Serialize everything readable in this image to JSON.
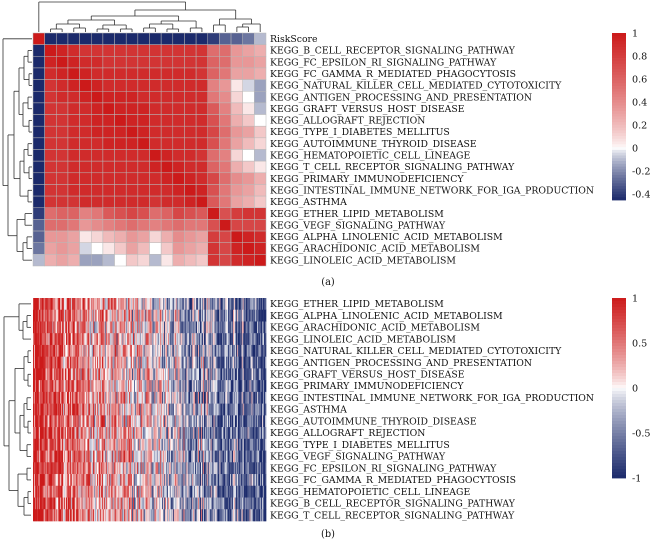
{
  "chart_data": [
    {
      "type": "heatmap",
      "panel_label": "(a)",
      "rows": [
        "RiskScore",
        "KEGG_B_CELL_RECEPTOR_SIGNALING_PATHWAY",
        "KEGG_FC_EPSILON_RI_SIGNALING_PATHWAY",
        "KEGG_FC_GAMMA_R_MEDIATED_PHAGOCYTOSIS",
        "KEGG_NATURAL_KILLER_CELL_MEDIATED_CYTOTOXICITY",
        "KEGG_ANTIGEN_PROCESSING_AND_PRESENTATION",
        "KEGG_GRAFT_VERSUS_HOST_DISEASE",
        "KEGG_ALLOGRAFT_REJECTION",
        "KEGG_TYPE_I_DIABETES_MELLITUS",
        "KEGG_AUTOIMMUNE_THYROID_DISEASE",
        "KEGG_HEMATOPOIETIC_CELL_LINEAGE",
        "KEGG_T_CELL_RECEPTOR_SIGNALING_PATHWAY",
        "KEGG_PRIMARY_IMMUNODEFICIENCY",
        "KEGG_INTESTINAL_IMMUNE_NETWORK_FOR_IGA_PRODUCTION",
        "KEGG_ASTHMA",
        "KEGG_ETHER_LIPID_METABOLISM",
        "KEGG_VEGF_SIGNALING_PATHWAY",
        "KEGG_ALPHA_LINOLENIC_ACID_METABOLISM",
        "KEGG_ARACHIDONIC_ACID_METABOLISM",
        "KEGG_LINOLEIC_ACID_METABOLISM"
      ],
      "values": [
        [
          1,
          -0.45,
          -0.45,
          -0.45,
          -0.45,
          -0.45,
          -0.45,
          -0.45,
          -0.45,
          -0.45,
          -0.45,
          -0.45,
          -0.45,
          -0.45,
          -0.45,
          -0.4,
          -0.3,
          -0.3,
          -0.25,
          -0.1
        ],
        [
          -0.45,
          1,
          0.95,
          0.9,
          0.85,
          0.85,
          0.85,
          0.85,
          0.85,
          0.85,
          0.85,
          0.85,
          0.85,
          0.85,
          0.85,
          0.55,
          0.55,
          0.35,
          0.3,
          0.25
        ],
        [
          -0.45,
          0.95,
          1,
          0.95,
          0.9,
          0.9,
          0.85,
          0.85,
          0.85,
          0.85,
          0.85,
          0.85,
          0.85,
          0.85,
          0.85,
          0.6,
          0.55,
          0.35,
          0.35,
          0.3
        ],
        [
          -0.45,
          0.9,
          0.95,
          1,
          0.95,
          0.9,
          0.9,
          0.9,
          0.9,
          0.9,
          0.9,
          0.9,
          0.9,
          0.9,
          0.85,
          0.6,
          0.5,
          0.3,
          0.3,
          0.25
        ],
        [
          -0.45,
          0.85,
          0.9,
          0.95,
          1,
          0.95,
          0.9,
          0.9,
          0.9,
          0.9,
          0.9,
          0.9,
          0.9,
          0.9,
          0.9,
          0.45,
          0.35,
          0.05,
          -0.05,
          -0.15
        ],
        [
          -0.45,
          0.85,
          0.9,
          0.9,
          0.95,
          1,
          0.95,
          0.95,
          0.95,
          0.9,
          0.9,
          0.9,
          0.9,
          0.9,
          0.9,
          0.5,
          0.4,
          0.1,
          0,
          -0.15
        ],
        [
          -0.45,
          0.85,
          0.85,
          0.9,
          0.9,
          0.95,
          1,
          0.95,
          0.95,
          0.95,
          0.9,
          0.9,
          0.9,
          0.9,
          0.9,
          0.65,
          0.45,
          0.2,
          0.05,
          -0.1
        ],
        [
          -0.45,
          0.85,
          0.85,
          0.9,
          0.9,
          0.95,
          0.95,
          1,
          0.95,
          0.95,
          0.9,
          0.9,
          0.9,
          0.9,
          0.9,
          0.7,
          0.5,
          0.25,
          0.15,
          0
        ],
        [
          -0.45,
          0.85,
          0.85,
          0.9,
          0.9,
          0.95,
          0.95,
          0.95,
          1,
          0.95,
          0.9,
          0.9,
          0.9,
          0.9,
          0.9,
          0.75,
          0.55,
          0.35,
          0.3,
          0.15
        ],
        [
          -0.45,
          0.85,
          0.85,
          0.9,
          0.9,
          0.9,
          0.95,
          0.95,
          0.95,
          1,
          0.9,
          0.9,
          0.9,
          0.9,
          0.9,
          0.7,
          0.5,
          0.3,
          0.2,
          0.1
        ],
        [
          -0.45,
          0.85,
          0.85,
          0.9,
          0.9,
          0.9,
          0.9,
          0.9,
          0.9,
          0.9,
          1,
          0.95,
          0.9,
          0.9,
          0.85,
          0.55,
          0.45,
          0.1,
          0,
          -0.1
        ],
        [
          -0.45,
          0.85,
          0.85,
          0.9,
          0.9,
          0.9,
          0.9,
          0.9,
          0.9,
          0.9,
          0.95,
          1,
          0.95,
          0.9,
          0.9,
          0.6,
          0.5,
          0.25,
          0.15,
          0.05
        ],
        [
          -0.45,
          0.85,
          0.85,
          0.9,
          0.9,
          0.9,
          0.9,
          0.9,
          0.9,
          0.9,
          0.9,
          0.95,
          1,
          0.95,
          0.9,
          0.75,
          0.55,
          0.4,
          0.35,
          0.25
        ],
        [
          -0.45,
          0.85,
          0.85,
          0.9,
          0.9,
          0.9,
          0.9,
          0.9,
          0.9,
          0.9,
          0.9,
          0.9,
          0.95,
          1,
          0.95,
          0.7,
          0.5,
          0.35,
          0.3,
          0.2
        ],
        [
          -0.45,
          0.85,
          0.85,
          0.85,
          0.9,
          0.9,
          0.9,
          0.9,
          0.9,
          0.9,
          0.85,
          0.9,
          0.9,
          0.95,
          1,
          0.65,
          0.5,
          0.3,
          0.25,
          0.15
        ],
        [
          -0.4,
          0.55,
          0.6,
          0.6,
          0.45,
          0.5,
          0.65,
          0.7,
          0.75,
          0.7,
          0.55,
          0.6,
          0.75,
          0.7,
          0.65,
          1,
          0.7,
          0.8,
          0.85,
          0.85
        ],
        [
          -0.3,
          0.55,
          0.55,
          0.5,
          0.35,
          0.4,
          0.45,
          0.5,
          0.55,
          0.5,
          0.45,
          0.5,
          0.55,
          0.5,
          0.5,
          0.7,
          1,
          0.75,
          0.75,
          0.75
        ],
        [
          -0.3,
          0.35,
          0.35,
          0.3,
          0.05,
          0.1,
          0.2,
          0.25,
          0.35,
          0.3,
          0.1,
          0.25,
          0.4,
          0.35,
          0.3,
          0.8,
          0.75,
          1,
          0.95,
          0.9
        ],
        [
          -0.25,
          0.3,
          0.35,
          0.3,
          -0.05,
          0,
          0.05,
          0.15,
          0.3,
          0.2,
          0,
          0.15,
          0.35,
          0.3,
          0.25,
          0.85,
          0.75,
          0.95,
          1,
          0.95
        ],
        [
          -0.1,
          0.25,
          0.3,
          0.25,
          -0.15,
          -0.15,
          -0.1,
          0,
          0.15,
          0.1,
          -0.1,
          0.05,
          0.25,
          0.2,
          0.15,
          0.85,
          0.75,
          0.9,
          0.95,
          1
        ]
      ],
      "colorbar": {
        "ticks": [
          1,
          0.8,
          0.6,
          0.4,
          0.2,
          0,
          -0.2,
          -0.4
        ],
        "range": [
          -0.45,
          1
        ],
        "colors": [
          "#1b2a6b",
          "#ffffff",
          "#cc1a1a"
        ]
      },
      "grid": true,
      "legend": "right",
      "dendrograms": [
        "top",
        "left"
      ]
    },
    {
      "type": "heatmap",
      "panel_label": "(b)",
      "rows": [
        "KEGG_ETHER_LIPID_METABOLISM",
        "KEGG_ALPHA_LINOLENIC_ACID_METABOLISM",
        "KEGG_ARACHIDONIC_ACID_METABOLISM",
        "KEGG_LINOLEIC_ACID_METABOLISM",
        "KEGG_NATURAL_KILLER_CELL_MEDIATED_CYTOTOXICITY",
        "KEGG_ANTIGEN_PROCESSING_AND_PRESENTATION",
        "KEGG_GRAFT_VERSUS_HOST_DISEASE",
        "KEGG_PRIMARY_IMMUNODEFICIENCY",
        "KEGG_INTESTINAL_IMMUNE_NETWORK_FOR_IGA_PRODUCTION",
        "KEGG_ASTHMA",
        "KEGG_AUTOIMMUNE_THYROID_DISEASE",
        "KEGG_ALLOGRAFT_REJECTION",
        "KEGG_TYPE_I_DIABETES_MELLITUS",
        "KEGG_VEGF_SIGNALING_PATHWAY",
        "KEGG_FC_EPSILON_RI_SIGNALING_PATHWAY",
        "KEGG_FC_GAMMA_R_MEDIATED_PHAGOCYTOSIS",
        "KEGG_HEMATOPOIETIC_CELL_LINEAGE",
        "KEGG_B_CELL_RECEPTOR_SIGNALING_PATHWAY",
        "KEGG_T_CELL_RECEPTOR_SIGNALING_PATHWAY"
      ],
      "samples": 240,
      "trend": "red (high) toward left samples, blue (low) toward right samples",
      "colorbar": {
        "ticks": [
          1,
          0.5,
          0,
          -0.5,
          -1
        ],
        "range": [
          -1,
          1
        ],
        "colors": [
          "#1b2a6b",
          "#ffffff",
          "#cc1a1a"
        ]
      },
      "grid": false,
      "legend": "right",
      "dendrograms": [
        "left"
      ]
    }
  ]
}
